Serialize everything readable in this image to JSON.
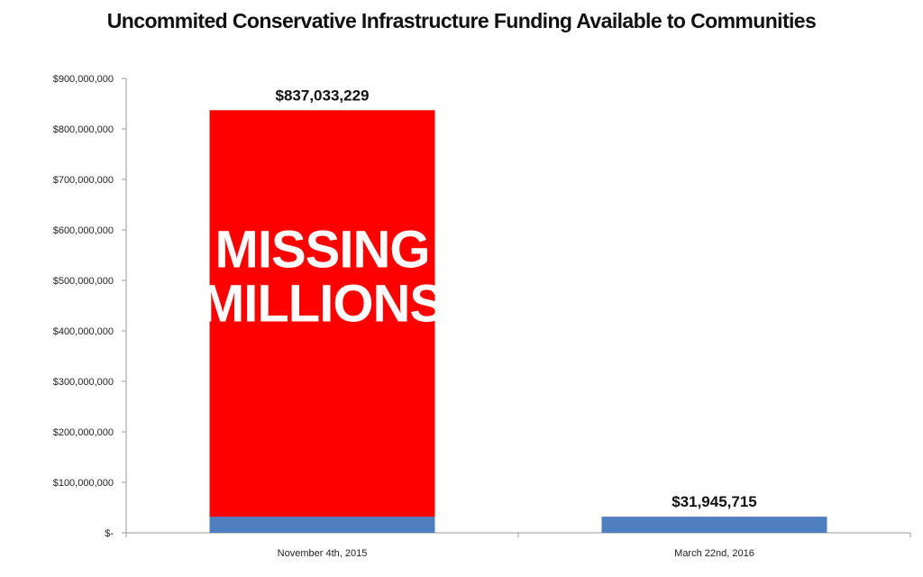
{
  "chart_data": {
    "type": "bar",
    "title": "Uncommited Conservative Infrastructure Funding  Available to Communities",
    "categories": [
      "November 4th, 2015",
      "March 22nd, 2016"
    ],
    "values": [
      837033229,
      31945715
    ],
    "value_labels": [
      "$837,033,229",
      "$31,945,715"
    ],
    "overlay_value": 31945715,
    "ylim": [
      0,
      900000000
    ],
    "yticks": [
      0,
      100000000,
      200000000,
      300000000,
      400000000,
      500000000,
      600000000,
      700000000,
      800000000,
      900000000
    ],
    "ytick_labels": [
      "$-",
      "$100,000,000",
      "$200,000,000",
      "$300,000,000",
      "$400,000,000",
      "$500,000,000",
      "$600,000,000",
      "$700,000,000",
      "$800,000,000",
      "$900,000,000"
    ],
    "annotation": {
      "lines": [
        "MISSING",
        "MILLIONS"
      ]
    },
    "grid": false,
    "colors": {
      "highlight": "#ff0000",
      "base": "#4f7fbf",
      "axis": "#9a9a9a"
    }
  }
}
